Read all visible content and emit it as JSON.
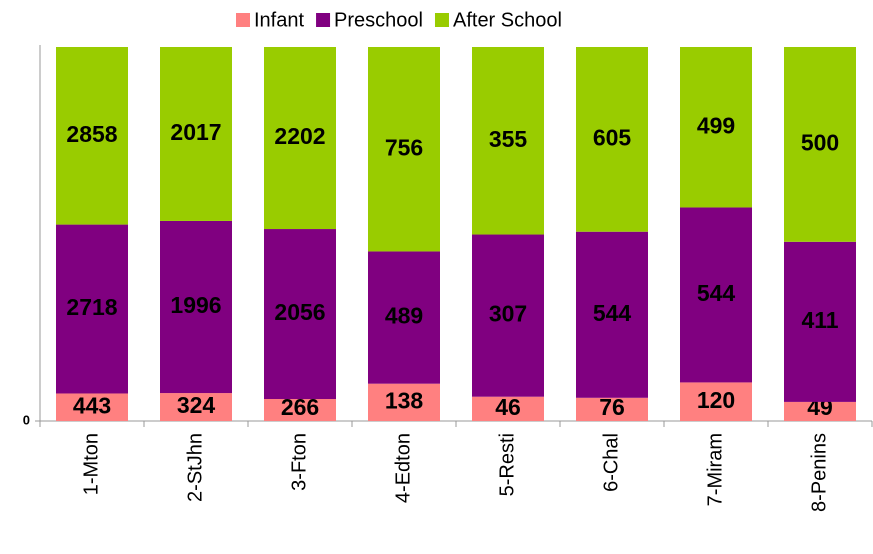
{
  "chart_data": {
    "type": "bar",
    "stack": "percent",
    "categories": [
      "1-Mton",
      "2-StJhn",
      "3-Fton",
      "4-Edton",
      "5-Resti",
      "6-Chal",
      "7-Miram",
      "8-Penins"
    ],
    "series": [
      {
        "name": "Infant",
        "color": "#ff8080",
        "values": [
          443,
          324,
          266,
          138,
          46,
          76,
          120,
          49
        ]
      },
      {
        "name": "Preschool",
        "color": "#800080",
        "values": [
          2718,
          1996,
          2056,
          489,
          307,
          544,
          544,
          411
        ]
      },
      {
        "name": "After School",
        "color": "#99cc00",
        "values": [
          2858,
          2017,
          2202,
          756,
          355,
          605,
          499,
          500
        ]
      }
    ],
    "ylim": [
      0,
      100
    ],
    "yticks": [
      0
    ],
    "legend": "top"
  }
}
